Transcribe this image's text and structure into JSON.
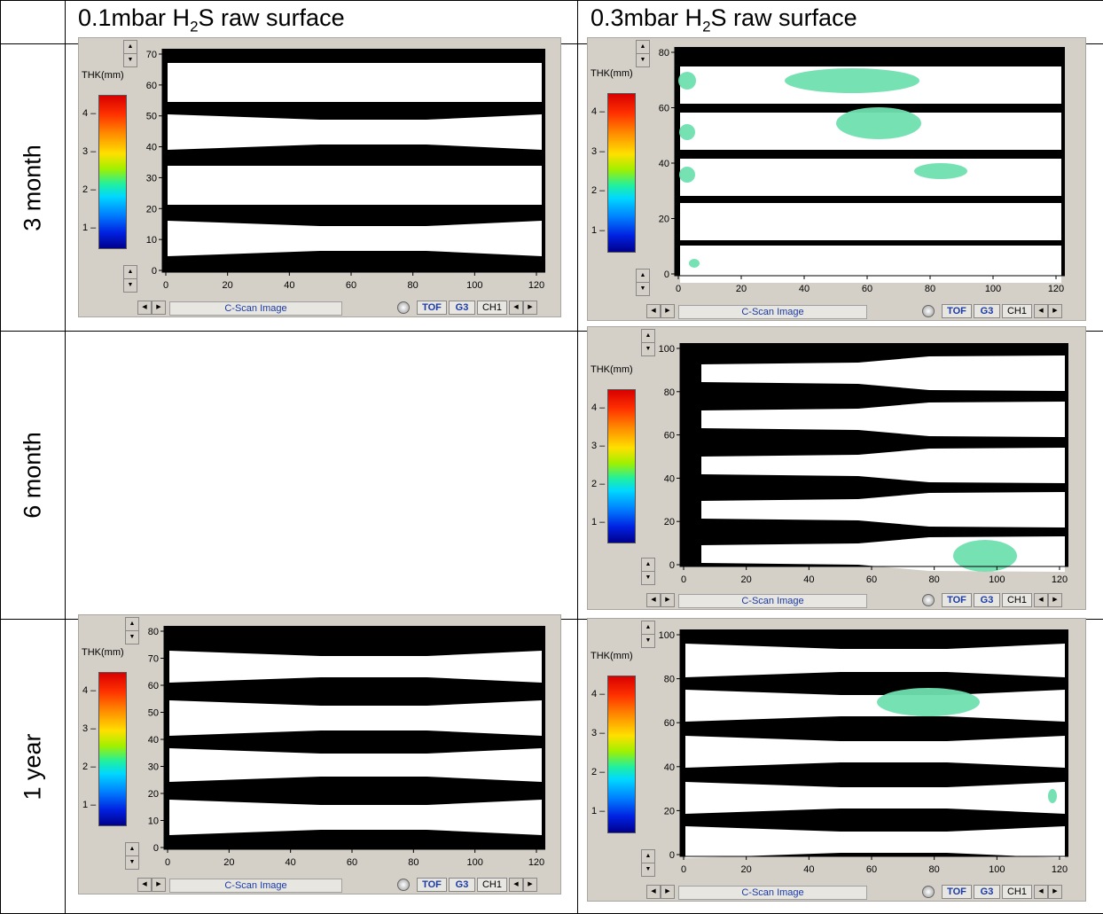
{
  "columns": [
    {
      "prefix": "0.1mbar H",
      "sub": "2",
      "suffix": "S raw surface"
    },
    {
      "prefix": "0.3mbar H",
      "sub": "2",
      "suffix": "S raw surface"
    }
  ],
  "rows": [
    "3 month",
    "6 month",
    "1 year"
  ],
  "panel_common": {
    "thk_label": "THK(mm)",
    "colorbar_ticks": [
      "4",
      "3",
      "2",
      "1"
    ],
    "x_ticks": [
      "0",
      "20",
      "40",
      "60",
      "80",
      "100",
      "120"
    ],
    "cscan_label": "C-Scan Image",
    "tof_label": "TOF",
    "g3_label": "G3",
    "ch_label": "CH1"
  },
  "panels": {
    "p01": {
      "y_ticks": [
        "70",
        "60",
        "50",
        "40",
        "30",
        "20",
        "10",
        "0"
      ]
    },
    "p02": {
      "y_ticks": [
        "80",
        "60",
        "40",
        "20",
        "0"
      ]
    },
    "p12": {
      "y_ticks": [
        "100",
        "80",
        "60",
        "40",
        "20",
        "0"
      ]
    },
    "p21": {
      "y_ticks": [
        "80",
        "70",
        "60",
        "50",
        "40",
        "30",
        "20",
        "10",
        "0"
      ]
    },
    "p22": {
      "y_ticks": [
        "100",
        "80",
        "60",
        "40",
        "20",
        "0"
      ]
    }
  },
  "colors": {
    "panel_bg": "#d4d0c8",
    "scan_bg": "#000000",
    "sample": "#ffffff",
    "corrosion": "#6fe0b0",
    "link_blue": "#1a3aa8"
  }
}
